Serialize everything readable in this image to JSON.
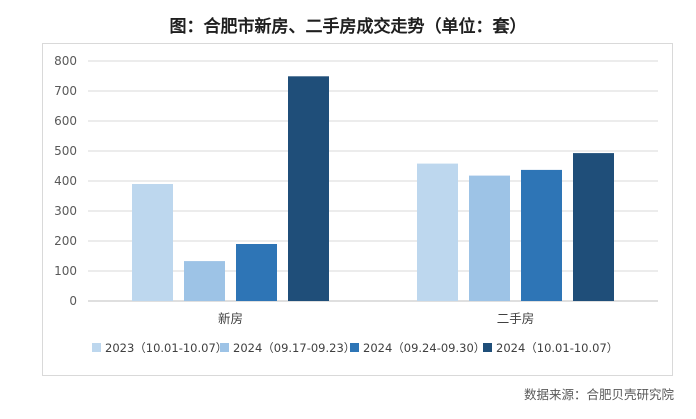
{
  "title": "图：合肥市新房、二手房成交走势（单位：套）",
  "source": "数据来源：合肥贝壳研究院",
  "colors": [
    "#bdd7ee",
    "#9dc3e6",
    "#2e75b6",
    "#1f4e79"
  ],
  "chart_data": {
    "type": "bar",
    "categories": [
      "新房",
      "二手房"
    ],
    "series": [
      {
        "name": "2023（10.01-10.07）",
        "values": [
          390,
          458
        ]
      },
      {
        "name": "2024（09.17-09.23）",
        "values": [
          133,
          418
        ]
      },
      {
        "name": "2024（09.24-09.30）",
        "values": [
          190,
          437
        ]
      },
      {
        "name": "2024（10.01-10.07）",
        "values": [
          749,
          493
        ]
      }
    ],
    "ylim": [
      0,
      800
    ],
    "yticks": [
      0,
      100,
      200,
      300,
      400,
      500,
      600,
      700,
      800
    ],
    "grid": true,
    "legend": "bottom"
  }
}
